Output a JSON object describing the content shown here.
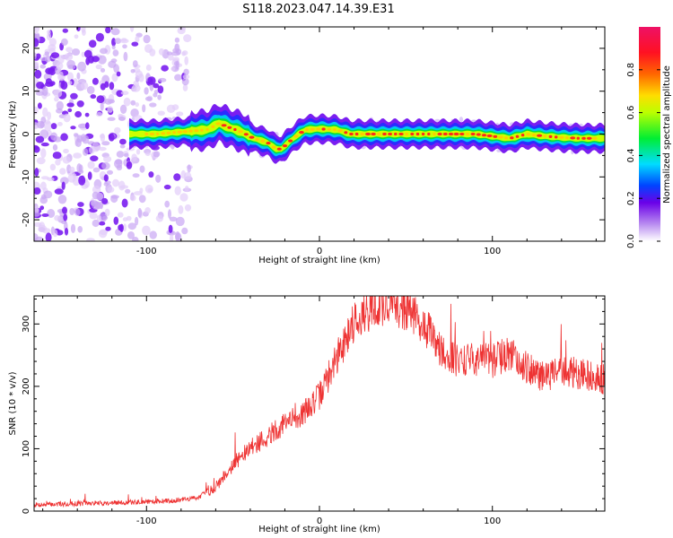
{
  "title": "S118.2023.047.14.39.E31",
  "chart_data": [
    {
      "type": "heatmap",
      "xlabel": "Height of straight line (km)",
      "ylabel": "Frequency (Hz)",
      "xlim": [
        -165,
        165
      ],
      "ylim": [
        -25,
        25
      ],
      "xticks": [
        -100,
        0,
        100
      ],
      "yticks": [
        -20,
        -10,
        0,
        10,
        20
      ],
      "colorbar": {
        "label": "Normalized spectral amplitude",
        "range": [
          0,
          1
        ],
        "ticks": [
          0.0,
          0.2,
          0.4,
          0.6,
          0.8
        ],
        "tick_labels": [
          "0.0",
          "0.2",
          "0.4",
          "0.6",
          "0.8"
        ]
      },
      "ridge": {
        "x": [
          -110,
          -95,
          -80,
          -65,
          -58,
          -52,
          -45,
          -38,
          -30,
          -25,
          -22,
          -18,
          -12,
          -8,
          0,
          10,
          18,
          25,
          40,
          60,
          70,
          80,
          90,
          100,
          110,
          120,
          130,
          140,
          150,
          165
        ],
        "y": [
          0,
          0,
          0.5,
          1,
          2.5,
          1.5,
          0.5,
          -1,
          -2,
          -3.5,
          -3.5,
          -2,
          0,
          1,
          1.2,
          1,
          0,
          0,
          0,
          0,
          0,
          0,
          0,
          -0.5,
          -1,
          0,
          -0.5,
          -0.8,
          -1,
          -1
        ]
      },
      "noise_region_x": [
        -165,
        -75
      ]
    },
    {
      "type": "line",
      "xlabel": "Height of straight line (km)",
      "ylabel": "SNR (10 * v/v)",
      "xlim": [
        -165,
        165
      ],
      "ylim": [
        0,
        345
      ],
      "xticks": [
        -100,
        0,
        100
      ],
      "yticks": [
        0,
        100,
        200,
        300
      ],
      "color": "#ee3333",
      "series": [
        {
          "x": [
            -165,
            -140,
            -120,
            -100,
            -90,
            -80,
            -70,
            -60,
            -50,
            -40,
            -30,
            -20,
            -10,
            0,
            10,
            20,
            30,
            40,
            50,
            60,
            70,
            80,
            90,
            100,
            110,
            120,
            130,
            140,
            150,
            160,
            165
          ],
          "values": [
            10,
            12,
            13,
            15,
            16,
            18,
            22,
            40,
            75,
            100,
            120,
            140,
            155,
            185,
            245,
            305,
            325,
            330,
            325,
            300,
            260,
            240,
            245,
            240,
            255,
            230,
            215,
            225,
            220,
            215,
            210
          ]
        }
      ]
    }
  ]
}
